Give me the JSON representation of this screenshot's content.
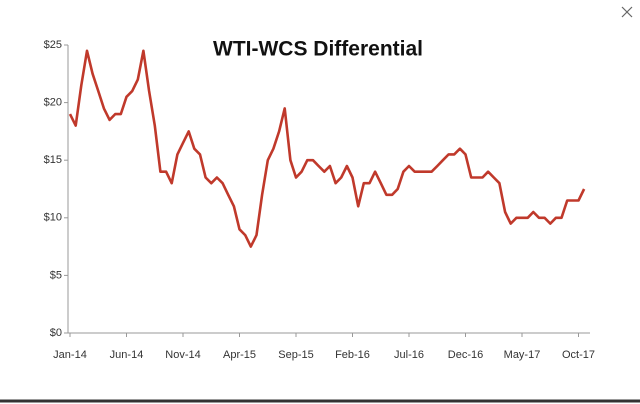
{
  "chart_data": {
    "type": "line",
    "title": "WTI-WCS Differential",
    "categories": [
      "Jan-14",
      null,
      null,
      null,
      null,
      null,
      null,
      null,
      null,
      null,
      "Jun-14",
      null,
      null,
      null,
      null,
      null,
      null,
      null,
      null,
      null,
      "Nov-14",
      null,
      null,
      null,
      null,
      null,
      null,
      null,
      null,
      null,
      "Apr-15",
      null,
      null,
      null,
      null,
      null,
      null,
      null,
      null,
      null,
      "Sep-15",
      null,
      null,
      null,
      null,
      null,
      null,
      null,
      null,
      null,
      "Feb-16",
      null,
      null,
      null,
      null,
      null,
      null,
      null,
      null,
      null,
      "Jul-16",
      null,
      null,
      null,
      null,
      null,
      null,
      null,
      null,
      null,
      "Dec-16",
      null,
      null,
      null,
      null,
      null,
      null,
      null,
      null,
      null,
      "May-17",
      null,
      null,
      null,
      null,
      null,
      null,
      null,
      null,
      null,
      "Oct-17",
      null
    ],
    "series": [
      {
        "name": "WTI-WCS",
        "color": "#c0392b",
        "values": [
          19,
          18,
          21.5,
          24.5,
          22.5,
          21,
          19.5,
          18.5,
          19,
          19,
          20.5,
          21,
          22,
          24.5,
          21,
          18,
          14,
          14,
          13,
          15.5,
          16.5,
          17.5,
          16,
          15.5,
          13.5,
          13,
          13.5,
          13,
          12,
          11,
          9,
          8.5,
          7.5,
          8.5,
          12,
          15,
          16,
          17.5,
          19.5,
          15,
          13.5,
          14,
          15,
          15,
          14.5,
          14,
          14.5,
          13,
          13.5,
          14.5,
          13.5,
          11,
          13,
          13,
          14,
          13,
          12,
          12,
          12.5,
          14,
          14.5,
          14,
          14,
          14,
          14,
          14.5,
          15,
          15.5,
          15.5,
          16,
          15.5,
          13.5,
          13.5,
          13.5,
          14,
          13.5,
          13,
          10.5,
          9.5,
          10,
          10,
          10,
          10.5,
          10,
          10,
          9.5,
          10,
          10,
          11.5,
          11.5,
          11.5,
          12.5
        ]
      }
    ],
    "ylim": [
      0,
      25
    ],
    "yticks": [
      {
        "value": 0,
        "label": "$0"
      },
      {
        "value": 5,
        "label": "$5"
      },
      {
        "value": 10,
        "label": "$10"
      },
      {
        "value": 15,
        "label": "$15"
      },
      {
        "value": 20,
        "label": "$20"
      },
      {
        "value": 25,
        "label": "$25"
      }
    ],
    "grid": false
  }
}
